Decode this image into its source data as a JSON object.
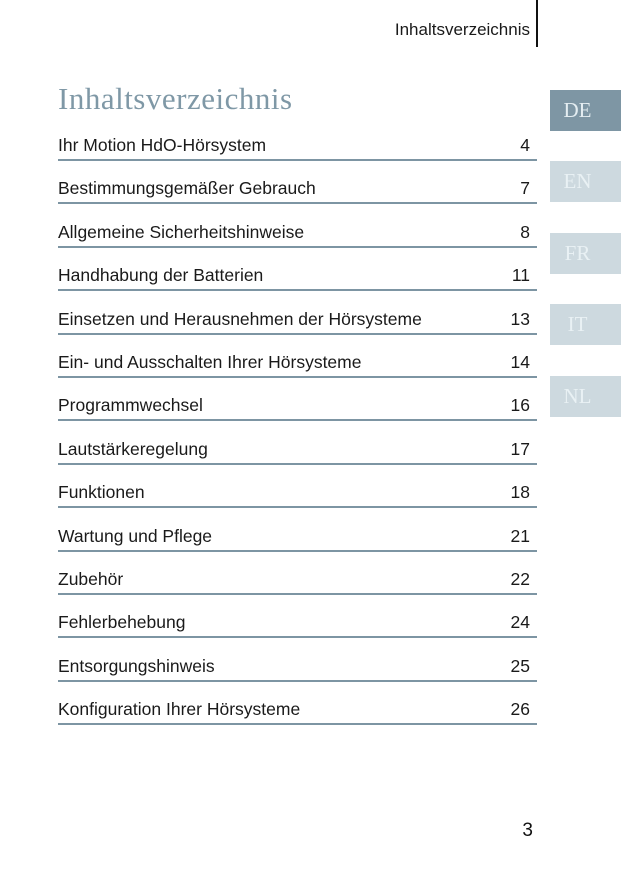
{
  "header": {
    "title": "Inhaltsverzeichnis"
  },
  "heading": "Inhaltsverzeichnis",
  "toc": {
    "entries": [
      {
        "label": "Ihr Motion HdO-Hörsystem",
        "page": "4"
      },
      {
        "label": "Bestimmungsgemäßer Gebrauch",
        "page": "7"
      },
      {
        "label": "Allgemeine Sicherheitshinweise",
        "page": "8"
      },
      {
        "label": "Handhabung der Batterien",
        "page": "11"
      },
      {
        "label": "Einsetzen und Herausnehmen der Hörsysteme",
        "page": "13"
      },
      {
        "label": "Ein- und Ausschalten Ihrer Hörsysteme",
        "page": "14"
      },
      {
        "label": "Programmwechsel",
        "page": "16"
      },
      {
        "label": "Lautstärkeregelung",
        "page": "17"
      },
      {
        "label": "Funktionen",
        "page": "18"
      },
      {
        "label": "Wartung und Pflege",
        "page": "21"
      },
      {
        "label": "Zubehör",
        "page": "22"
      },
      {
        "label": "Fehlerbehebung",
        "page": "24"
      },
      {
        "label": "Entsorgungshinweis",
        "page": "25"
      },
      {
        "label": "Konfiguration Ihrer Hörsysteme",
        "page": "26"
      }
    ]
  },
  "language_tabs": {
    "active": "DE",
    "tabs": [
      {
        "label": "DE",
        "active": true
      },
      {
        "label": "EN",
        "active": false
      },
      {
        "label": "FR",
        "active": false
      },
      {
        "label": "IT",
        "active": false
      },
      {
        "label": "NL",
        "active": false
      }
    ]
  },
  "footer": {
    "page_number": "3"
  },
  "colors": {
    "accent": "#7E96A4",
    "tab_inactive_bg": "#CDD9DF",
    "tab_label": "#E9F1F4",
    "heading_text": "#7F98A6",
    "rule": "#7D95A3",
    "body_text": "#1A1A1A"
  }
}
